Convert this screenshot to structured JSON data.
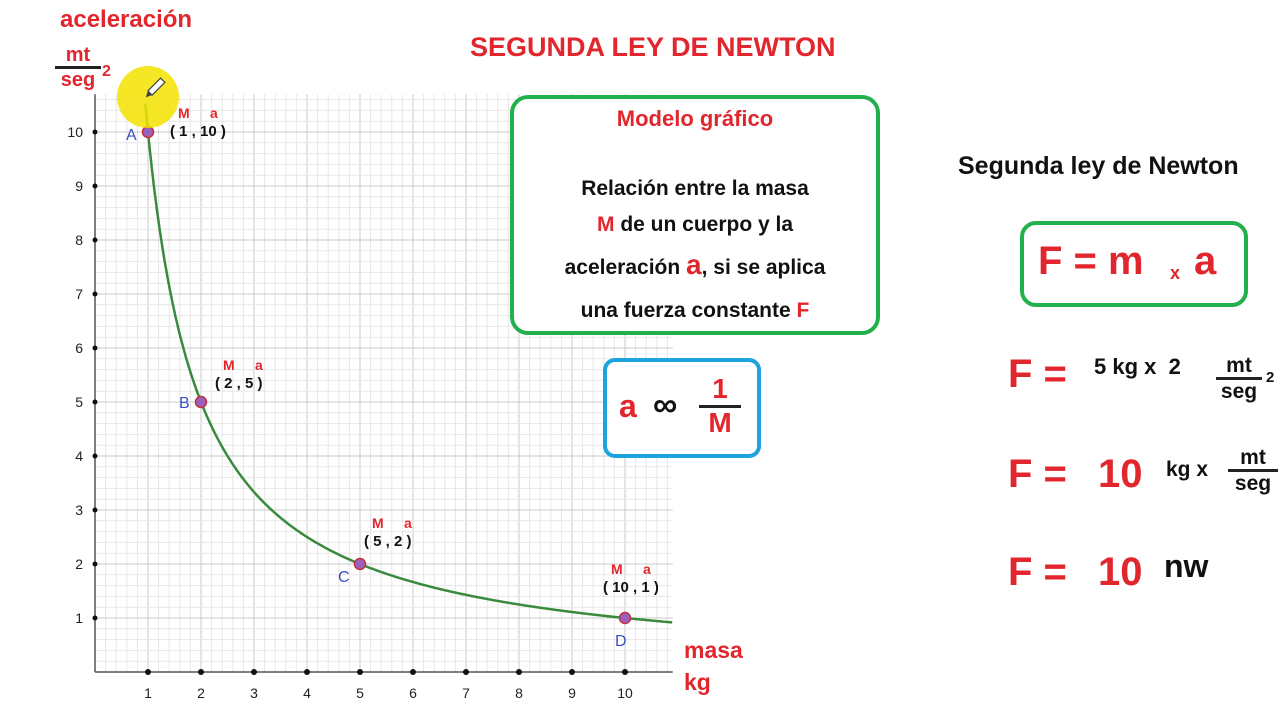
{
  "title": "SEGUNDA LEY DE NEWTON",
  "y_axis": {
    "label": "aceleración",
    "unit_num": "mt",
    "unit_den": "seg",
    "unit_exp": "2"
  },
  "x_axis": {
    "label_line1": "masa",
    "label_line2": "kg"
  },
  "point_labels": {
    "mass": "M",
    "accel": "a"
  },
  "points": [
    {
      "name": "A",
      "coord": "( 1 , 10 )"
    },
    {
      "name": "B",
      "coord": "( 2 , 5 )"
    },
    {
      "name": "C",
      "coord": "( 5 , 2 )"
    },
    {
      "name": "D",
      "coord": "( 10 , 1 )"
    }
  ],
  "chart_data": {
    "type": "line",
    "x": [
      1,
      2,
      5,
      10
    ],
    "series": [
      {
        "values": [
          10,
          5,
          2,
          1
        ]
      }
    ],
    "curve": "a = 10 / M",
    "xlim": [
      0,
      10.9
    ],
    "ylim": [
      0,
      10.7
    ],
    "xticks": [
      1,
      2,
      3,
      4,
      5,
      6,
      7,
      8,
      9,
      10
    ],
    "yticks": [
      1,
      2,
      3,
      4,
      5,
      6,
      7,
      8,
      9,
      10
    ],
    "grid": true,
    "curve_color": "#3a8a3e",
    "point_color": "#9b5fc0"
  },
  "model": {
    "title": "Modelo gráfico",
    "line1": "Relación entre la masa",
    "line2_var": "M",
    "line2_rest": "de un cuerpo y la",
    "line3_pre": "aceleración",
    "line3_var": "a",
    "line3_post": ", si se aplica",
    "line4_pre": "una fuerza constante",
    "line4_var": "F"
  },
  "proportion": {
    "var": "a",
    "symbol": "∞",
    "num": "1",
    "den": "M"
  },
  "newton": {
    "heading": "Segunda ley de Newton",
    "formula_f": "F = m",
    "formula_x": "x",
    "formula_a": "a",
    "eq1_lhs": "F =",
    "eq1_rhs": "5 kg x  2",
    "eq1_num": "mt",
    "eq1_den": "seg",
    "eq1_exp": "2",
    "eq2_lhs": "F =",
    "eq2_val": "10",
    "eq2_unit": "kg x",
    "eq2_num": "mt",
    "eq2_den": "seg",
    "eq3_lhs": "F =",
    "eq3_val": "10",
    "eq3_unit": "nw"
  },
  "colors": {
    "red": "#e2262d",
    "green_box": "#22b04c",
    "blue_box": "#1ea3df",
    "point_name": "#3b4fc4",
    "highlight": "#f3e200"
  }
}
